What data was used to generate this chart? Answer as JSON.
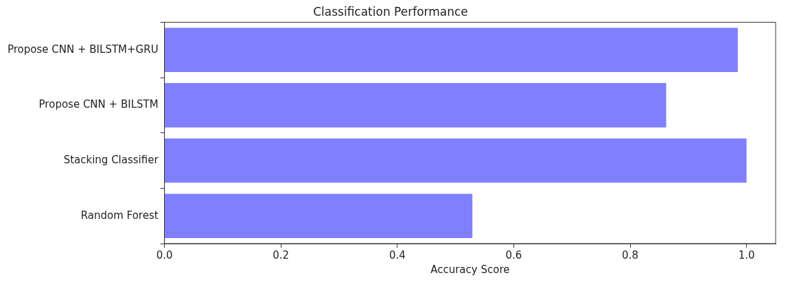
{
  "chart_data": {
    "type": "bar",
    "orientation": "horizontal",
    "title": "Classification Performance",
    "xlabel": "Accuracy Score",
    "categories": [
      "Propose CNN + BILSTM+GRU",
      "Propose CNN + BILSTM",
      "Stacking Classifier",
      "Random Forest"
    ],
    "values": [
      0.985,
      0.862,
      1.0,
      0.529
    ],
    "color": "#8080ff",
    "xlim": [
      0,
      1.05
    ],
    "xticks": [
      {
        "value": 0,
        "label": "0.0"
      },
      {
        "value": 0.2,
        "label": "0.2"
      },
      {
        "value": 0.4,
        "label": "0.4"
      },
      {
        "value": 0.6,
        "label": "0.6"
      },
      {
        "value": 0.8,
        "label": "0.8"
      },
      {
        "value": 1,
        "label": "1.0"
      }
    ],
    "grid": false,
    "legend": false
  }
}
